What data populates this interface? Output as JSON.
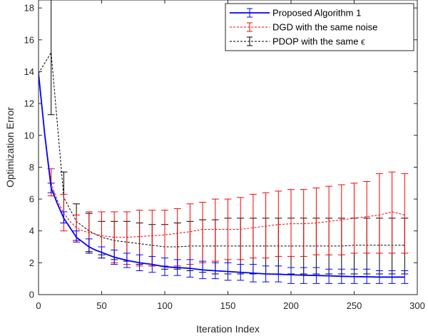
{
  "chart_data": {
    "type": "line",
    "xlabel": "Iteration Index",
    "ylabel": "Optimization Error",
    "xlim": [
      0,
      300
    ],
    "ylim": [
      0,
      18.5
    ],
    "xticks": [
      0,
      50,
      100,
      150,
      200,
      250,
      300
    ],
    "yticks": [
      0,
      2,
      4,
      6,
      8,
      10,
      12,
      14,
      16,
      18
    ],
    "grid": false,
    "legend_position": "top-right",
    "series": [
      {
        "name": "Proposed Algorithm 1",
        "color": "#0000ff",
        "line_style": "solid",
        "mean_x": [
          0,
          5,
          10,
          15,
          20,
          25,
          30,
          35,
          40,
          45,
          50,
          60,
          70,
          80,
          90,
          100,
          110,
          120,
          130,
          140,
          150,
          160,
          170,
          180,
          190,
          200,
          210,
          220,
          230,
          240,
          250,
          260,
          270,
          280,
          290
        ],
        "mean_y": [
          13.9,
          10.0,
          6.7,
          5.7,
          4.8,
          4.2,
          3.6,
          3.3,
          3.0,
          2.8,
          2.65,
          2.35,
          2.15,
          2.0,
          1.9,
          1.75,
          1.7,
          1.65,
          1.55,
          1.5,
          1.45,
          1.4,
          1.35,
          1.3,
          1.28,
          1.25,
          1.22,
          1.2,
          1.18,
          1.15,
          1.13,
          1.12,
          1.1,
          1.1,
          1.1
        ],
        "errorbars": [
          {
            "x": 10,
            "low": 6.4,
            "high": 7.0
          },
          {
            "x": 20,
            "low": 4.5,
            "high": 5.2
          },
          {
            "x": 30,
            "low": 3.3,
            "high": 4.0
          },
          {
            "x": 40,
            "low": 2.6,
            "high": 3.5
          },
          {
            "x": 50,
            "low": 2.3,
            "high": 3.0
          },
          {
            "x": 60,
            "low": 1.9,
            "high": 2.8
          },
          {
            "x": 70,
            "low": 1.7,
            "high": 2.6
          },
          {
            "x": 80,
            "low": 1.5,
            "high": 2.5
          },
          {
            "x": 90,
            "low": 1.4,
            "high": 2.4
          },
          {
            "x": 100,
            "low": 1.2,
            "high": 2.3
          },
          {
            "x": 110,
            "low": 1.2,
            "high": 2.2
          },
          {
            "x": 120,
            "low": 1.1,
            "high": 2.2
          },
          {
            "x": 130,
            "low": 1.0,
            "high": 2.1
          },
          {
            "x": 140,
            "low": 1.0,
            "high": 2.0
          },
          {
            "x": 150,
            "low": 0.9,
            "high": 2.0
          },
          {
            "x": 160,
            "low": 0.9,
            "high": 1.9
          },
          {
            "x": 170,
            "low": 0.8,
            "high": 1.9
          },
          {
            "x": 180,
            "low": 0.8,
            "high": 1.8
          },
          {
            "x": 190,
            "low": 0.8,
            "high": 1.8
          },
          {
            "x": 200,
            "low": 0.7,
            "high": 1.7
          },
          {
            "x": 210,
            "low": 0.7,
            "high": 1.7
          },
          {
            "x": 220,
            "low": 0.7,
            "high": 1.7
          },
          {
            "x": 230,
            "low": 0.7,
            "high": 1.6
          },
          {
            "x": 240,
            "low": 0.7,
            "high": 1.6
          },
          {
            "x": 250,
            "low": 0.7,
            "high": 1.6
          },
          {
            "x": 260,
            "low": 0.7,
            "high": 1.6
          },
          {
            "x": 270,
            "low": 0.7,
            "high": 1.5
          },
          {
            "x": 280,
            "low": 0.7,
            "high": 1.5
          },
          {
            "x": 290,
            "low": 0.7,
            "high": 1.5
          }
        ]
      },
      {
        "name": "DGD with the same noise",
        "color": "#ff0000",
        "line_style": "dashed",
        "mean_x": [
          0,
          5,
          10,
          15,
          20,
          25,
          30,
          35,
          40,
          45,
          50,
          60,
          70,
          80,
          90,
          100,
          110,
          120,
          130,
          140,
          150,
          160,
          170,
          180,
          190,
          200,
          210,
          220,
          230,
          240,
          250,
          260,
          270,
          280,
          290
        ],
        "mean_y": [
          13.9,
          10.0,
          7.0,
          5.9,
          5.1,
          4.6,
          4.2,
          4.0,
          3.9,
          3.8,
          3.7,
          3.6,
          3.6,
          3.65,
          3.7,
          3.75,
          3.85,
          3.95,
          4.1,
          4.1,
          4.1,
          4.1,
          4.2,
          4.3,
          4.4,
          4.45,
          4.45,
          4.5,
          4.6,
          4.7,
          4.8,
          4.9,
          5.0,
          5.2,
          5.0
        ],
        "errorbars": [
          {
            "x": 10,
            "low": 6.2,
            "high": 7.9
          },
          {
            "x": 20,
            "low": 4.0,
            "high": 6.3
          },
          {
            "x": 30,
            "low": 3.4,
            "high": 5.0
          },
          {
            "x": 40,
            "low": 2.6,
            "high": 5.2
          },
          {
            "x": 50,
            "low": 2.3,
            "high": 5.2
          },
          {
            "x": 60,
            "low": 2.0,
            "high": 5.2
          },
          {
            "x": 70,
            "low": 1.9,
            "high": 5.2
          },
          {
            "x": 80,
            "low": 1.8,
            "high": 5.3
          },
          {
            "x": 90,
            "low": 1.8,
            "high": 5.3
          },
          {
            "x": 100,
            "low": 1.8,
            "high": 5.3
          },
          {
            "x": 110,
            "low": 1.8,
            "high": 5.4
          },
          {
            "x": 120,
            "low": 1.9,
            "high": 5.7
          },
          {
            "x": 130,
            "low": 2.0,
            "high": 5.8
          },
          {
            "x": 140,
            "low": 2.1,
            "high": 6.0
          },
          {
            "x": 150,
            "low": 2.2,
            "high": 6.0
          },
          {
            "x": 160,
            "low": 2.2,
            "high": 6.1
          },
          {
            "x": 170,
            "low": 2.3,
            "high": 6.3
          },
          {
            "x": 180,
            "low": 2.3,
            "high": 6.4
          },
          {
            "x": 190,
            "low": 2.4,
            "high": 6.5
          },
          {
            "x": 200,
            "low": 2.4,
            "high": 6.6
          },
          {
            "x": 210,
            "low": 2.4,
            "high": 6.6
          },
          {
            "x": 220,
            "low": 2.5,
            "high": 6.7
          },
          {
            "x": 230,
            "low": 2.5,
            "high": 6.8
          },
          {
            "x": 240,
            "low": 2.5,
            "high": 6.9
          },
          {
            "x": 250,
            "low": 2.6,
            "high": 7.0
          },
          {
            "x": 260,
            "low": 2.6,
            "high": 7.1
          },
          {
            "x": 270,
            "low": 2.6,
            "high": 7.6
          },
          {
            "x": 280,
            "low": 2.6,
            "high": 7.7
          },
          {
            "x": 290,
            "low": 2.6,
            "high": 7.6
          }
        ]
      },
      {
        "name": "PDOP with the same ϵ",
        "color": "#000000",
        "line_style": "dashed",
        "mean_x": [
          0,
          10,
          20,
          30,
          40,
          50,
          60,
          70,
          80,
          90,
          100,
          110,
          120,
          130,
          140,
          150,
          160,
          170,
          180,
          190,
          200,
          210,
          220,
          230,
          240,
          250,
          260,
          270,
          280,
          290
        ],
        "mean_y": [
          13.9,
          15.2,
          6.1,
          4.6,
          4.0,
          3.6,
          3.4,
          3.3,
          3.2,
          3.1,
          3.0,
          3.0,
          3.05,
          3.05,
          3.05,
          3.05,
          3.05,
          3.05,
          3.05,
          3.05,
          3.05,
          3.05,
          3.05,
          3.05,
          3.05,
          3.1,
          3.1,
          3.1,
          3.1,
          3.1
        ],
        "errorbars": [
          {
            "x": 10,
            "low": 11.3,
            "high": 19.0
          },
          {
            "x": 20,
            "low": 4.5,
            "high": 7.7
          },
          {
            "x": 30,
            "low": 3.4,
            "high": 5.7
          },
          {
            "x": 40,
            "low": 2.7,
            "high": 5.1
          },
          {
            "x": 50,
            "low": 2.5,
            "high": 4.6
          },
          {
            "x": 60,
            "low": 2.2,
            "high": 4.6
          },
          {
            "x": 70,
            "low": 2.1,
            "high": 4.6
          },
          {
            "x": 80,
            "low": 1.9,
            "high": 4.5
          },
          {
            "x": 90,
            "low": 1.8,
            "high": 4.4
          },
          {
            "x": 100,
            "low": 1.6,
            "high": 4.4
          },
          {
            "x": 110,
            "low": 1.6,
            "high": 4.5
          },
          {
            "x": 120,
            "low": 1.5,
            "high": 4.6
          },
          {
            "x": 130,
            "low": 1.4,
            "high": 4.7
          },
          {
            "x": 140,
            "low": 1.3,
            "high": 4.7
          },
          {
            "x": 150,
            "low": 1.3,
            "high": 4.8
          },
          {
            "x": 160,
            "low": 1.3,
            "high": 4.8
          },
          {
            "x": 170,
            "low": 1.3,
            "high": 4.8
          },
          {
            "x": 180,
            "low": 1.3,
            "high": 4.8
          },
          {
            "x": 190,
            "low": 1.3,
            "high": 4.8
          },
          {
            "x": 200,
            "low": 1.3,
            "high": 4.8
          },
          {
            "x": 210,
            "low": 1.3,
            "high": 4.8
          },
          {
            "x": 220,
            "low": 1.3,
            "high": 4.8
          },
          {
            "x": 230,
            "low": 1.3,
            "high": 4.8
          },
          {
            "x": 240,
            "low": 1.3,
            "high": 4.8
          },
          {
            "x": 250,
            "low": 1.3,
            "high": 4.8
          },
          {
            "x": 260,
            "low": 1.3,
            "high": 4.8
          },
          {
            "x": 270,
            "low": 1.3,
            "high": 4.8
          },
          {
            "x": 280,
            "low": 1.3,
            "high": 4.8
          },
          {
            "x": 290,
            "low": 1.3,
            "high": 4.8
          }
        ]
      }
    ]
  }
}
